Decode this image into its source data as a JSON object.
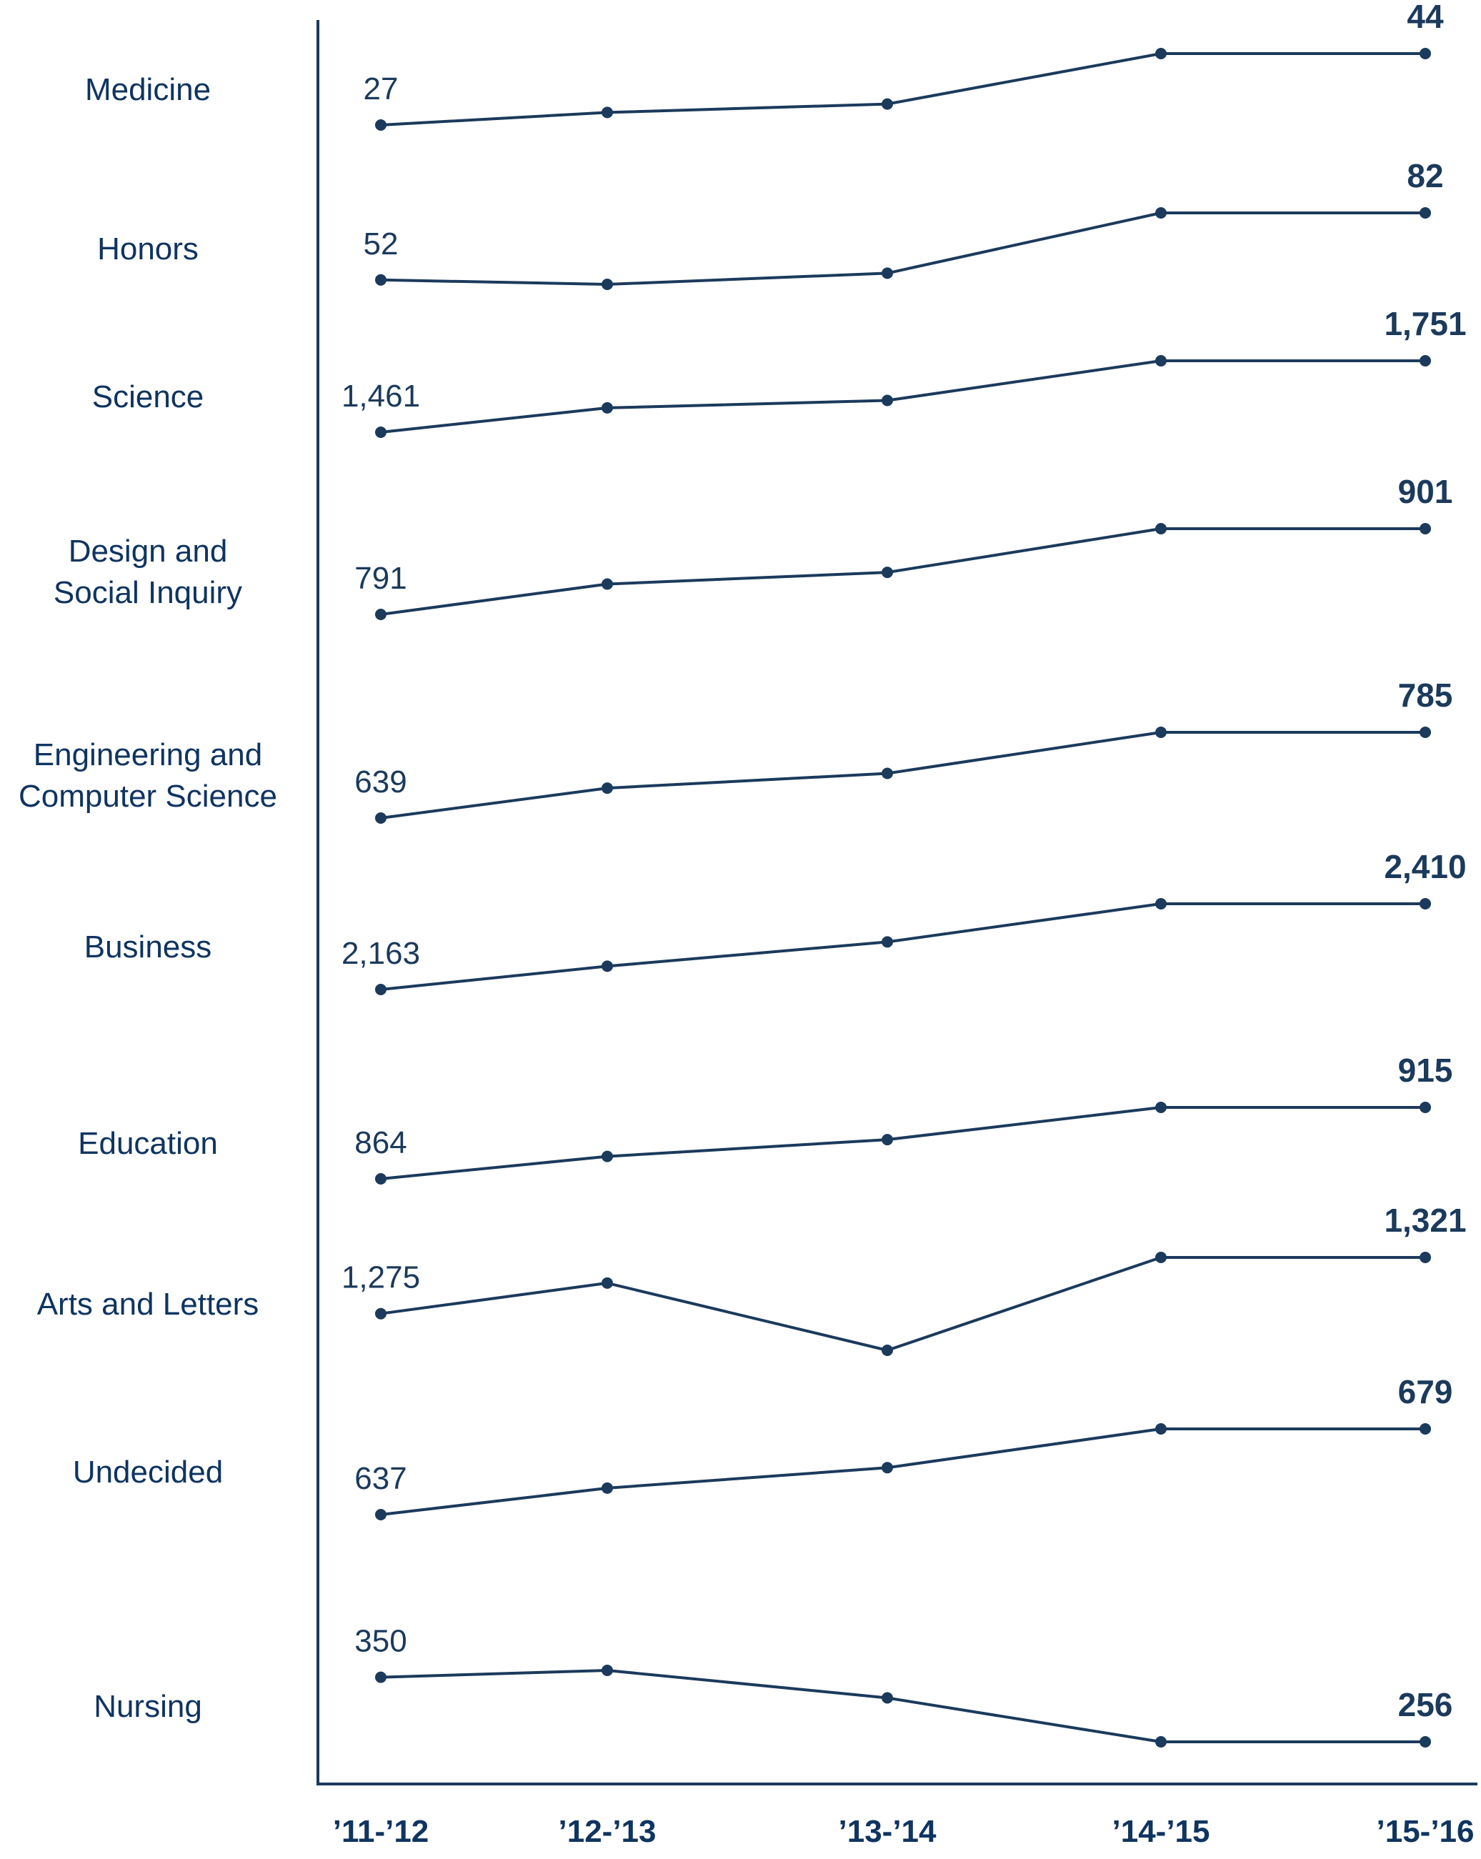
{
  "colors": {
    "line": "#1b3a5c",
    "label": "#0f3460"
  },
  "chart_data": {
    "type": "line",
    "layout": "small-multiples",
    "x": [
      "’11-’12",
      "’12-’13",
      "’13-’14",
      "’14-’15",
      "’15-’16"
    ],
    "series": [
      {
        "name": "Medicine",
        "values": [
          27,
          30,
          32,
          44,
          44
        ],
        "start_label": "27",
        "end_label": "44"
      },
      {
        "name": "Honors",
        "values": [
          52,
          50,
          55,
          82,
          82
        ],
        "start_label": "52",
        "end_label": "82"
      },
      {
        "name": "Science",
        "values": [
          1461,
          1560,
          1590,
          1751,
          1751
        ],
        "start_label": "1,461",
        "end_label": "1,751"
      },
      {
        "name": "Design and\nSocial Inquiry",
        "values": [
          791,
          830,
          845,
          901,
          901
        ],
        "start_label": "791",
        "end_label": "901"
      },
      {
        "name": "Engineering and\nComputer Science",
        "values": [
          639,
          690,
          715,
          785,
          785
        ],
        "start_label": "639",
        "end_label": "785"
      },
      {
        "name": "Business",
        "values": [
          2163,
          2230,
          2300,
          2410,
          2410
        ],
        "start_label": "2,163",
        "end_label": "2,410"
      },
      {
        "name": "Education",
        "values": [
          864,
          880,
          892,
          915,
          915
        ],
        "start_label": "864",
        "end_label": "915"
      },
      {
        "name": "Arts and Letters",
        "values": [
          1275,
          1300,
          1245,
          1321,
          1321
        ],
        "start_label": "1,275",
        "end_label": "1,321"
      },
      {
        "name": "Undecided",
        "values": [
          637,
          650,
          660,
          679,
          679
        ],
        "start_label": "637",
        "end_label": "679"
      },
      {
        "name": "Nursing",
        "values": [
          350,
          360,
          320,
          256,
          256
        ],
        "start_label": "350",
        "end_label": "256"
      }
    ]
  }
}
